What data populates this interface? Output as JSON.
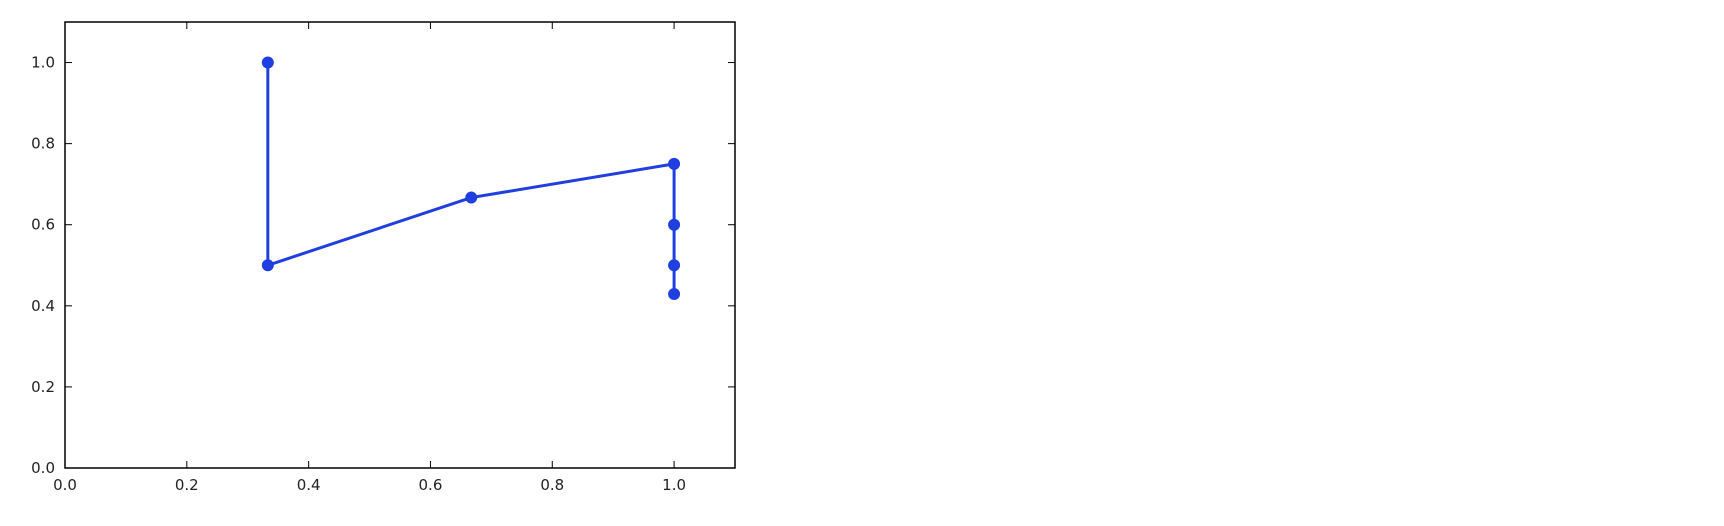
{
  "chart_data": {
    "type": "line",
    "title": "",
    "xlabel": "",
    "ylabel": "",
    "xlim": [
      0.0,
      1.1
    ],
    "ylim": [
      0.0,
      1.1
    ],
    "xticks": [
      "0.0",
      "0.2",
      "0.4",
      "0.6",
      "0.8",
      "1.0"
    ],
    "yticks": [
      "0.0",
      "0.2",
      "0.4",
      "0.6",
      "0.8",
      "1.0"
    ],
    "grid": false,
    "legend": "none",
    "series": [
      {
        "color": "#1f3fe0",
        "marker": "circle",
        "points": [
          {
            "x": 0.333,
            "y": 1.0
          },
          {
            "x": 0.333,
            "y": 0.5
          },
          {
            "x": 0.667,
            "y": 0.667
          },
          {
            "x": 1.0,
            "y": 0.75
          },
          {
            "x": 1.0,
            "y": 0.6
          },
          {
            "x": 1.0,
            "y": 0.5
          },
          {
            "x": 1.0,
            "y": 0.429
          }
        ]
      }
    ]
  }
}
